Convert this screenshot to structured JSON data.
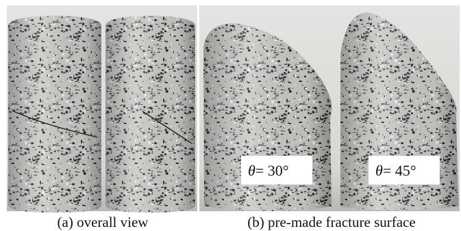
{
  "figure": {
    "panels": [
      {
        "caption": "(a) overall view"
      },
      {
        "caption": "(b) pre-made fracture surface",
        "labels": [
          {
            "symbol": "θ",
            "text": "= 30°"
          },
          {
            "symbol": "θ",
            "text": "= 45°"
          }
        ]
      }
    ]
  }
}
